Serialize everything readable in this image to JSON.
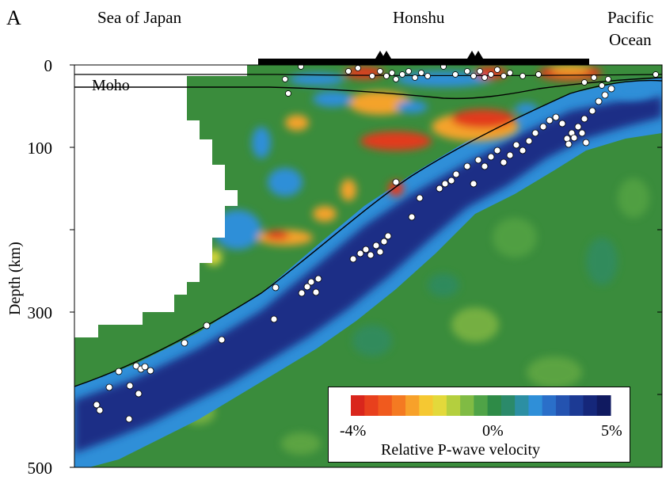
{
  "panel_label": "A",
  "regions": {
    "left": "Sea of Japan",
    "center": "Honshu",
    "right_line1": "Pacific",
    "right_line2": "Ocean"
  },
  "moho_label": "Moho",
  "y_axis": {
    "label": "Depth (km)",
    "ticks": [
      "0",
      "100",
      "300",
      "500"
    ],
    "range": [
      0,
      500
    ]
  },
  "colorbar": {
    "min_label": "-4%",
    "mid_label": "0%",
    "max_label": "5%",
    "title": "Relative P-wave velocity",
    "colors": [
      "#d9261c",
      "#e8401d",
      "#f05a1e",
      "#f47a22",
      "#f7a12a",
      "#f5c832",
      "#e3d93b",
      "#b4cf3e",
      "#80bb44",
      "#4fa347",
      "#2e8b47",
      "#2b8a6a",
      "#2c8fa3",
      "#2f8fd8",
      "#2a6fc9",
      "#2453b0",
      "#1c3a94",
      "#15277a",
      "#101a60"
    ]
  },
  "volcanoes": 2,
  "colors": {
    "ocean_green": "#3a8c3c",
    "slab_blue": "#1c2f86",
    "slab_edge": "#2f8fd8",
    "slow_red": "#e23a1f",
    "white_area": "#ffffff"
  }
}
